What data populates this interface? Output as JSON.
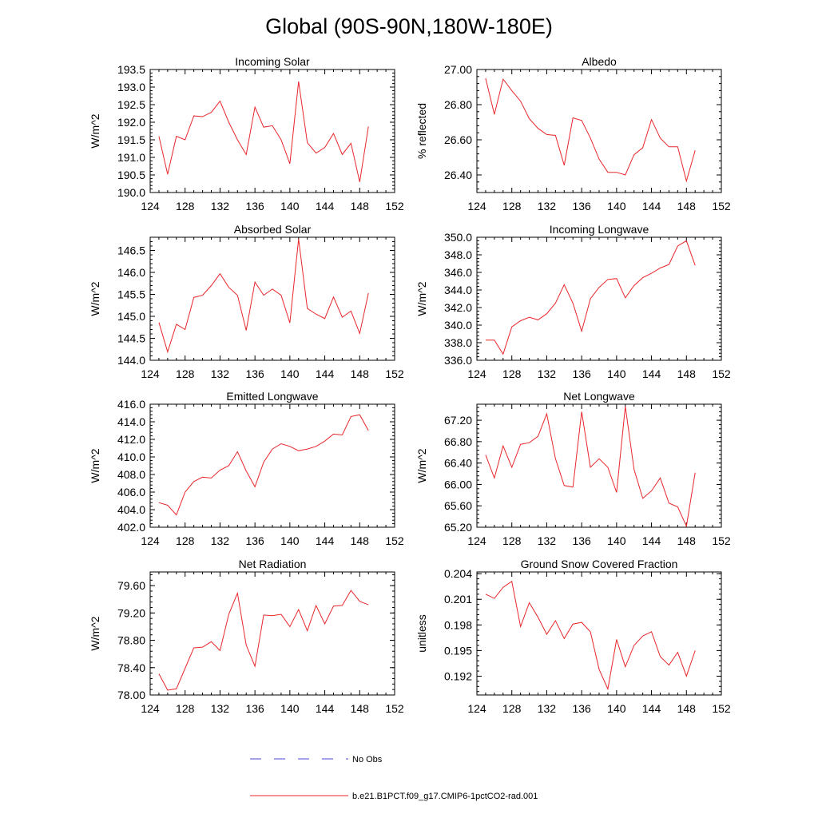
{
  "figure": {
    "title": "Global (90S-90N,180W-180E)"
  },
  "legend": {
    "entries": [
      {
        "label": "No Obs",
        "color": "#4a4ad8",
        "dash": true
      },
      {
        "label": "b.e21.B1PCT.f09_g17.CMIP6-1pctCO2-rad.001",
        "color": "#e8262b",
        "dash": false
      }
    ]
  },
  "chart_data": [
    {
      "type": "line",
      "title": "Incoming Solar",
      "ylabel": "W/m^2",
      "xlim": [
        124,
        152
      ],
      "xticks": [
        124,
        128,
        132,
        136,
        140,
        144,
        148,
        152
      ],
      "ylim": [
        190.0,
        193.5
      ],
      "yticks": [
        "190.0",
        "190.5",
        "191.0",
        "191.5",
        "192.0",
        "192.5",
        "193.0",
        "193.5"
      ],
      "series": [
        {
          "color": "#e8262b",
          "x": [
            125,
            126,
            127,
            128,
            129,
            130,
            131,
            132,
            133,
            134,
            135,
            136,
            137,
            138,
            139,
            140,
            141,
            142,
            143,
            144,
            145,
            146,
            147,
            148,
            149
          ],
          "y": [
            191.6,
            190.52,
            191.6,
            191.5,
            192.18,
            192.16,
            192.28,
            192.6,
            192.0,
            191.5,
            191.08,
            192.43,
            191.86,
            191.9,
            191.5,
            190.82,
            193.16,
            191.42,
            191.12,
            191.28,
            191.68,
            191.08,
            191.4,
            190.3,
            191.88
          ]
        }
      ]
    },
    {
      "type": "line",
      "title": "Albedo",
      "ylabel": "% reflected",
      "xlim": [
        124,
        152
      ],
      "xticks": [
        124,
        128,
        132,
        136,
        140,
        144,
        148,
        152
      ],
      "ylim": [
        26.3,
        27.0
      ],
      "yticks": [
        "26.40",
        "26.60",
        "26.80",
        "27.00"
      ],
      "series": [
        {
          "color": "#e8262b",
          "x": [
            125,
            126,
            127,
            128,
            129,
            130,
            131,
            132,
            133,
            134,
            135,
            136,
            137,
            138,
            139,
            140,
            141,
            142,
            143,
            144,
            145,
            146,
            147,
            148,
            149
          ],
          "y": [
            26.95,
            26.745,
            26.945,
            26.88,
            26.82,
            26.72,
            26.665,
            26.63,
            26.625,
            26.455,
            26.725,
            26.71,
            26.61,
            26.49,
            26.415,
            26.415,
            26.4,
            26.515,
            26.555,
            26.715,
            26.61,
            26.56,
            26.56,
            26.365,
            26.54
          ]
        }
      ]
    },
    {
      "type": "line",
      "title": "Absorbed Solar",
      "ylabel": "W/m^2",
      "xlim": [
        124,
        152
      ],
      "xticks": [
        124,
        128,
        132,
        136,
        140,
        144,
        148,
        152
      ],
      "ylim": [
        144.0,
        146.8
      ],
      "yticks": [
        "144.0",
        "144.5",
        "145.0",
        "145.5",
        "146.0",
        "146.5"
      ],
      "series": [
        {
          "color": "#e8262b",
          "x": [
            125,
            126,
            127,
            128,
            129,
            130,
            131,
            132,
            133,
            134,
            135,
            136,
            137,
            138,
            139,
            140,
            141,
            142,
            143,
            144,
            145,
            146,
            147,
            148,
            149
          ],
          "y": [
            144.86,
            144.19,
            144.82,
            144.7,
            145.43,
            145.48,
            145.7,
            145.97,
            145.66,
            145.48,
            144.68,
            145.78,
            145.48,
            145.62,
            145.48,
            144.85,
            146.76,
            145.18,
            145.05,
            144.95,
            145.44,
            144.98,
            145.12,
            144.61,
            145.53
          ]
        }
      ]
    },
    {
      "type": "line",
      "title": "Incoming Longwave",
      "ylabel": "W/m^2",
      "xlim": [
        124,
        152
      ],
      "xticks": [
        124,
        128,
        132,
        136,
        140,
        144,
        148,
        152
      ],
      "ylim": [
        336.0,
        350.0
      ],
      "yticks": [
        "336.0",
        "338.0",
        "340.0",
        "342.0",
        "344.0",
        "346.0",
        "348.0",
        "350.0"
      ],
      "series": [
        {
          "color": "#e8262b",
          "x": [
            125,
            126,
            127,
            128,
            129,
            130,
            131,
            132,
            133,
            134,
            135,
            136,
            137,
            138,
            139,
            140,
            141,
            142,
            143,
            144,
            145,
            146,
            147,
            148,
            149
          ],
          "y": [
            338.3,
            338.3,
            336.7,
            339.8,
            340.5,
            340.9,
            340.6,
            341.3,
            342.5,
            344.6,
            342.5,
            339.3,
            343.0,
            344.3,
            345.2,
            345.3,
            343.1,
            344.5,
            345.4,
            345.9,
            346.5,
            346.9,
            349.0,
            349.6,
            346.8
          ]
        }
      ]
    },
    {
      "type": "line",
      "title": "Emitted Longwave",
      "ylabel": "W/m^2",
      "xlim": [
        124,
        152
      ],
      "xticks": [
        124,
        128,
        132,
        136,
        140,
        144,
        148,
        152
      ],
      "ylim": [
        402.0,
        416.0
      ],
      "yticks": [
        "402.0",
        "404.0",
        "406.0",
        "408.0",
        "410.0",
        "412.0",
        "414.0",
        "416.0"
      ],
      "series": [
        {
          "color": "#e8262b",
          "x": [
            125,
            126,
            127,
            128,
            129,
            130,
            131,
            132,
            133,
            134,
            135,
            136,
            137,
            138,
            139,
            140,
            141,
            142,
            143,
            144,
            145,
            146,
            147,
            148,
            149
          ],
          "y": [
            404.8,
            404.5,
            403.4,
            406.0,
            407.2,
            407.7,
            407.6,
            408.5,
            409.0,
            410.6,
            408.4,
            406.6,
            409.4,
            410.9,
            411.5,
            411.2,
            410.7,
            410.9,
            411.2,
            411.8,
            412.6,
            412.5,
            414.6,
            414.8,
            413.0
          ]
        }
      ]
    },
    {
      "type": "line",
      "title": "Net Longwave",
      "ylabel": "W/m^2",
      "xlim": [
        124,
        152
      ],
      "xticks": [
        124,
        128,
        132,
        136,
        140,
        144,
        148,
        152
      ],
      "ylim": [
        65.2,
        67.5
      ],
      "yticks": [
        "65.20",
        "65.60",
        "66.00",
        "66.40",
        "66.80",
        "67.20"
      ],
      "series": [
        {
          "color": "#e8262b",
          "x": [
            125,
            126,
            127,
            128,
            129,
            130,
            131,
            132,
            133,
            134,
            135,
            136,
            137,
            138,
            139,
            140,
            141,
            142,
            143,
            144,
            145,
            146,
            147,
            148,
            149
          ],
          "y": [
            66.55,
            66.12,
            66.72,
            66.32,
            66.75,
            66.78,
            66.9,
            67.32,
            66.48,
            65.98,
            65.95,
            67.36,
            66.32,
            66.48,
            66.32,
            65.85,
            67.46,
            66.28,
            65.74,
            65.88,
            66.12,
            65.65,
            65.58,
            65.22,
            66.22
          ]
        }
      ]
    },
    {
      "type": "line",
      "title": "Net Radiation",
      "ylabel": "W/m^2",
      "xlim": [
        124,
        152
      ],
      "xticks": [
        124,
        128,
        132,
        136,
        140,
        144,
        148,
        152
      ],
      "ylim": [
        78.0,
        79.8
      ],
      "yticks": [
        "78.00",
        "78.40",
        "78.80",
        "79.20",
        "79.60"
      ],
      "series": [
        {
          "color": "#e8262b",
          "x": [
            125,
            126,
            127,
            128,
            129,
            130,
            131,
            132,
            133,
            134,
            135,
            136,
            137,
            138,
            139,
            140,
            141,
            142,
            143,
            144,
            145,
            146,
            147,
            148,
            149
          ],
          "y": [
            78.31,
            78.07,
            78.09,
            78.39,
            78.69,
            78.7,
            78.78,
            78.65,
            79.18,
            79.49,
            78.73,
            78.42,
            79.17,
            79.16,
            79.18,
            79.0,
            79.25,
            78.94,
            79.31,
            79.04,
            79.3,
            79.31,
            79.53,
            79.37,
            79.32
          ]
        }
      ]
    },
    {
      "type": "line",
      "title": "Ground Snow Covered Fraction",
      "ylabel": "unitless",
      "xlim": [
        124,
        152
      ],
      "xticks": [
        124,
        128,
        132,
        136,
        140,
        144,
        148,
        152
      ],
      "ylim": [
        0.1898,
        0.2042
      ],
      "yticks": [
        "0.192",
        "0.195",
        "0.198",
        "0.201",
        "0.204"
      ],
      "series": [
        {
          "color": "#e8262b",
          "x": [
            125,
            126,
            127,
            128,
            129,
            130,
            131,
            132,
            133,
            134,
            135,
            136,
            137,
            138,
            139,
            140,
            141,
            142,
            143,
            144,
            145,
            146,
            147,
            148,
            149
          ],
          "y": [
            0.2016,
            0.2011,
            0.2024,
            0.2031,
            0.1978,
            0.2006,
            0.1989,
            0.1969,
            0.1985,
            0.1964,
            0.1981,
            0.1983,
            0.1972,
            0.1928,
            0.1905,
            0.1963,
            0.1931,
            0.1956,
            0.1967,
            0.1972,
            0.1943,
            0.1933,
            0.1948,
            0.192,
            0.195
          ]
        }
      ]
    }
  ]
}
